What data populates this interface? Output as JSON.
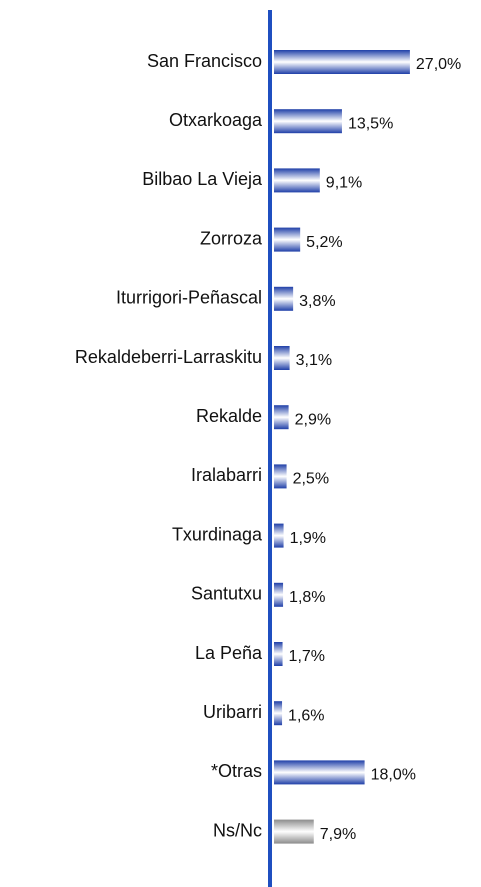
{
  "chart_data": {
    "type": "bar",
    "orientation": "horizontal",
    "categories": [
      "San Francisco",
      "Otxarkoaga",
      "Bilbao La Vieja",
      "Zorroza",
      "Iturrigori-Peñascal",
      "Rekaldeberri-Larraskitu",
      "Rekalde",
      "Iralabarri",
      "Txurdinaga",
      "Santutxu",
      "La Peña",
      "Uribarri",
      "*Otras",
      "Ns/Nc"
    ],
    "values": [
      27.0,
      13.5,
      9.1,
      5.2,
      3.8,
      3.1,
      2.9,
      2.5,
      1.9,
      1.8,
      1.7,
      1.6,
      18.0,
      7.9
    ],
    "value_labels": [
      "27,0%",
      "13,5%",
      "9,1%",
      "5,2%",
      "3,8%",
      "3,1%",
      "2,9%",
      "2,5%",
      "1,9%",
      "1,8%",
      "1,7%",
      "1,6%",
      "18,0%",
      "7,9%"
    ],
    "colors": [
      "#1f3fa8",
      "#1f3fa8",
      "#1f3fa8",
      "#1f3fa8",
      "#1f3fa8",
      "#1f3fa8",
      "#1f3fa8",
      "#1f3fa8",
      "#1f3fa8",
      "#1f3fa8",
      "#1f3fa8",
      "#1f3fa8",
      "#1f3fa8",
      "#8c8c8c"
    ],
    "xlim": [
      0,
      30
    ]
  }
}
